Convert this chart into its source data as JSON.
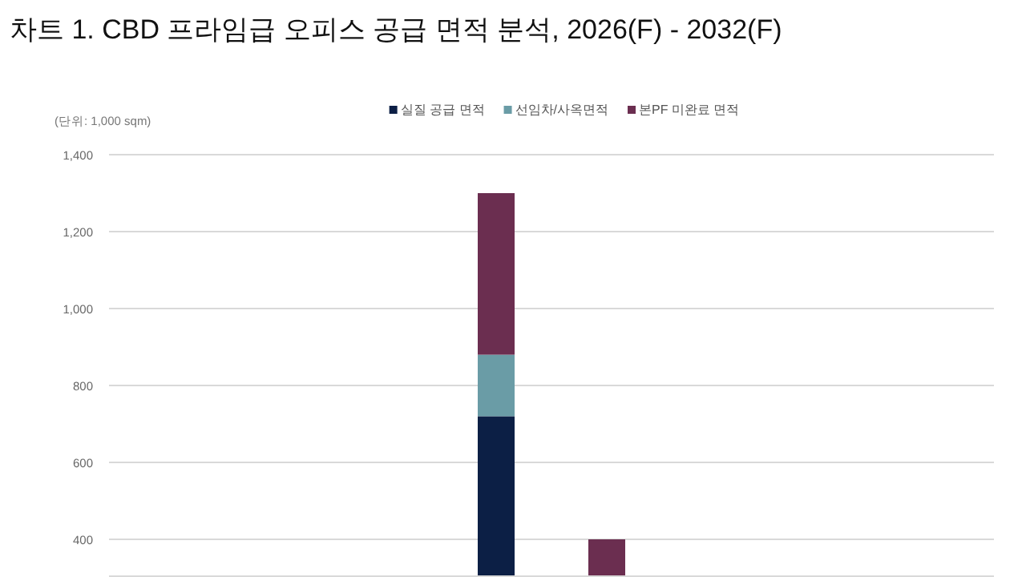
{
  "chart_data": {
    "type": "bar",
    "title": "차트 1. CBD 프라임급 오피스 공급 면적 분석, 2026(F) - 2032(F)",
    "ylabel": "(단위: 1,000 sqm)",
    "categories": [
      null,
      null,
      null,
      null,
      null,
      null,
      null,
      null
    ],
    "series": [
      {
        "name": "실질 공급 면적",
        "color": "#0c1f45",
        "values": [
          null,
          null,
          null,
          720,
          null,
          null,
          null,
          null
        ]
      },
      {
        "name": "선임차/사옥면적",
        "color": "#6a9ca6",
        "base": [
          null,
          null,
          null,
          720,
          null,
          null,
          null,
          null
        ],
        "values": [
          null,
          null,
          null,
          160,
          null,
          null,
          null,
          null
        ]
      },
      {
        "name": "본PF 미완료 면적",
        "color": "#6b2e50",
        "base": [
          null,
          null,
          null,
          880,
          null,
          null,
          null,
          null
        ],
        "values": [
          null,
          null,
          null,
          420,
          400,
          null,
          null,
          null
        ]
      }
    ],
    "ylim": [
      302,
      1400
    ],
    "yticks": [
      {
        "value": 400,
        "label": "400"
      },
      {
        "value": 600,
        "label": "600"
      },
      {
        "value": 800,
        "label": "800"
      },
      {
        "value": 1000,
        "label": "1,000"
      },
      {
        "value": 1200,
        "label": "1,200"
      },
      {
        "value": 1400,
        "label": "1,400"
      }
    ],
    "grid": "y",
    "legend": "top",
    "tick_labels": "y"
  }
}
